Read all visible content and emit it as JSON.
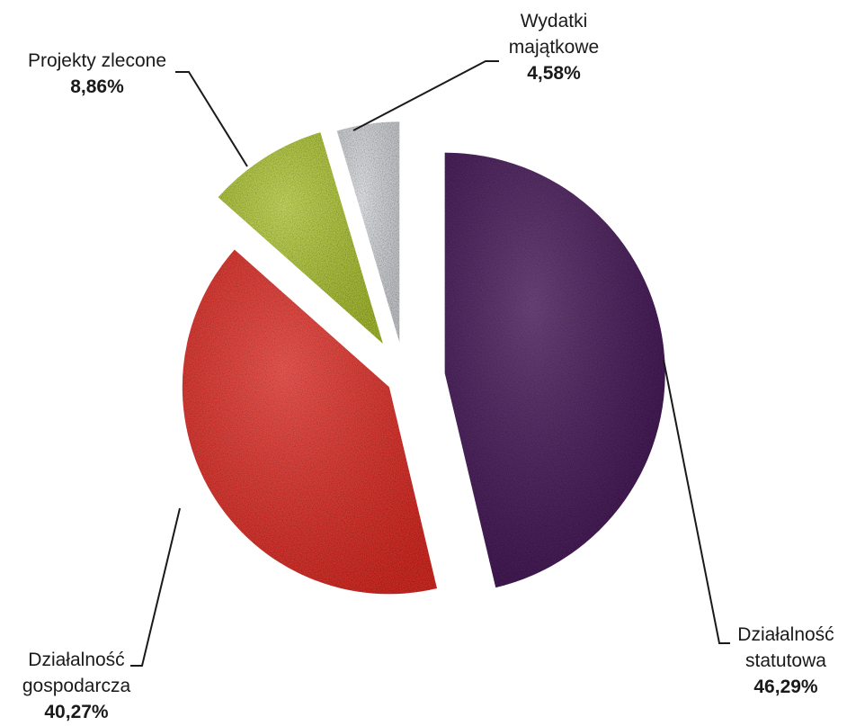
{
  "chart_data": {
    "type": "pie",
    "title": "",
    "start_angle_deg": 0,
    "direction": "clockwise",
    "slices": [
      {
        "label_lines": [
          "Działalność",
          "statutowa"
        ],
        "label": "Działalność statutowa",
        "value": 46.29,
        "value_label": "46,29%",
        "color": "#4a1e5c"
      },
      {
        "label_lines": [
          "Działalność",
          "gospodarcza"
        ],
        "label": "Działalność gospodarcza",
        "value": 40.27,
        "value_label": "40,27%",
        "color": "#e8322a"
      },
      {
        "label_lines": [
          "Projekty zlecone"
        ],
        "label": "Projekty zlecone",
        "value": 8.86,
        "value_label": "8,86%",
        "color": "#b5cc38"
      },
      {
        "label_lines": [
          "Wydatki",
          "majątkowe"
        ],
        "label": "Wydatki majątkowe",
        "value": 4.58,
        "value_label": "4,58%",
        "color": "#d9dbe0"
      }
    ]
  }
}
